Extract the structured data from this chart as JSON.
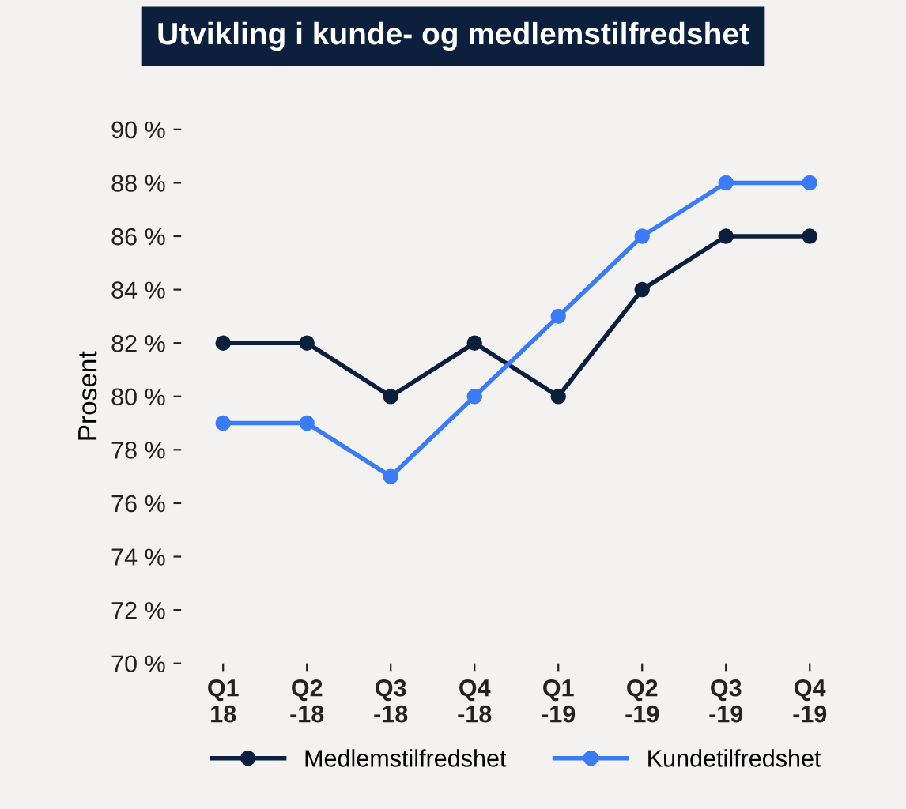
{
  "chart_data": {
    "type": "line",
    "title": "Utvikling i kunde- og medlemstilfredshet",
    "ylabel": "Prosent",
    "categories": [
      "Q1\n18",
      "Q2\n-18",
      "Q3\n-18",
      "Q4\n-18",
      "Q1\n-19",
      "Q2\n-19",
      "Q3\n-19",
      "Q4\n-19"
    ],
    "series": [
      {
        "name": "Medlemstilfredshet",
        "color": "#0c1f3d",
        "values": [
          82,
          82,
          80,
          82,
          80,
          84,
          86,
          86
        ]
      },
      {
        "name": "Kundetilfredshet",
        "color": "#3b7cf6",
        "values": [
          79,
          79,
          77,
          80,
          83,
          86,
          88,
          88
        ]
      }
    ],
    "ylim": [
      70,
      90
    ],
    "yticks": [
      {
        "value": 70,
        "label": "70 %"
      },
      {
        "value": 72,
        "label": "72 %"
      },
      {
        "value": 74,
        "label": "74 %"
      },
      {
        "value": 76,
        "label": "76 %"
      },
      {
        "value": 78,
        "label": "78 %"
      },
      {
        "value": 80,
        "label": "80 %"
      },
      {
        "value": 82,
        "label": "82 %"
      },
      {
        "value": 84,
        "label": "84 %"
      },
      {
        "value": 86,
        "label": "86 %"
      },
      {
        "value": 88,
        "label": "88 %"
      },
      {
        "value": 90,
        "label": "90 %"
      }
    ],
    "grid": false,
    "legend": "bottom",
    "marker": "circle",
    "line_style": "solid"
  }
}
